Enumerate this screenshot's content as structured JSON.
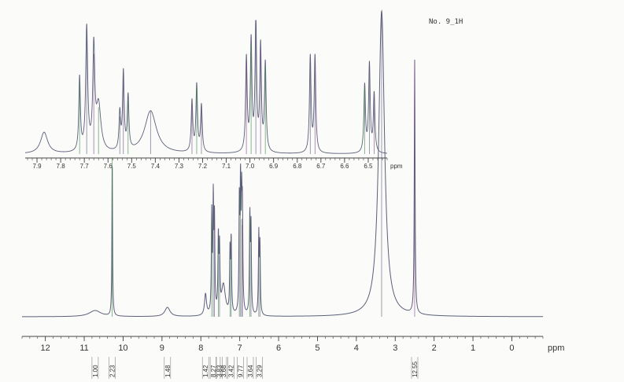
{
  "sample_label": "No. 9_1H",
  "chart_data": [
    {
      "type": "line",
      "role": "full-spectrum",
      "xlabel": "ppm",
      "xlim": [
        12.6,
        -0.8
      ],
      "x_reversed": true,
      "ticks": [
        12,
        11,
        10,
        9,
        8,
        7,
        6,
        5,
        4,
        3,
        2,
        1,
        0
      ],
      "tick_labels": [
        "12",
        "11",
        "10",
        "9",
        "8",
        "7",
        "6",
        "5",
        "4",
        "3",
        "2",
        "1",
        "0"
      ],
      "peaks": [
        {
          "ppm": 10.72,
          "height": 0.02,
          "width": 0.18
        },
        {
          "ppm": 10.28,
          "height": 0.52,
          "width": 0.01
        },
        {
          "ppm": 8.86,
          "height": 0.03,
          "width": 0.08
        },
        {
          "ppm": 7.88,
          "height": 0.07,
          "width": 0.03
        },
        {
          "ppm": 7.72,
          "height": 0.32,
          "width": 0.012
        },
        {
          "ppm": 7.68,
          "height": 0.36,
          "width": 0.012
        },
        {
          "ppm": 7.65,
          "height": 0.3,
          "width": 0.012
        },
        {
          "ppm": 7.55,
          "height": 0.24,
          "width": 0.012
        },
        {
          "ppm": 7.52,
          "height": 0.2,
          "width": 0.012
        },
        {
          "ppm": 7.42,
          "height": 0.1,
          "width": 0.06
        },
        {
          "ppm": 7.25,
          "height": 0.2,
          "width": 0.012
        },
        {
          "ppm": 7.22,
          "height": 0.24,
          "width": 0.012
        },
        {
          "ppm": 7.01,
          "height": 0.35,
          "width": 0.012
        },
        {
          "ppm": 6.98,
          "height": 0.4,
          "width": 0.012
        },
        {
          "ppm": 6.95,
          "height": 0.32,
          "width": 0.012
        },
        {
          "ppm": 6.93,
          "height": 0.3,
          "width": 0.012
        },
        {
          "ppm": 6.74,
          "height": 0.32,
          "width": 0.012
        },
        {
          "ppm": 6.71,
          "height": 0.28,
          "width": 0.012
        },
        {
          "ppm": 6.51,
          "height": 0.26,
          "width": 0.012
        },
        {
          "ppm": 6.48,
          "height": 0.22,
          "width": 0.012
        },
        {
          "ppm": 3.35,
          "height": 1.0,
          "width": 0.09
        },
        {
          "ppm": 2.5,
          "height": 0.83,
          "width": 0.012
        }
      ],
      "integrals": [
        {
          "ppm": 10.72,
          "value": "1.00"
        },
        {
          "ppm": 10.28,
          "value": "2.23"
        },
        {
          "ppm": 8.86,
          "value": "1.48"
        },
        {
          "ppm": 7.88,
          "value": "1.42"
        },
        {
          "ppm": 7.68,
          "value": "8.27"
        },
        {
          "ppm": 7.53,
          "value": "3.83"
        },
        {
          "ppm": 7.42,
          "value": "3.68"
        },
        {
          "ppm": 7.23,
          "value": "3.42"
        },
        {
          "ppm": 6.98,
          "value": "9.77"
        },
        {
          "ppm": 6.73,
          "value": "3.64"
        },
        {
          "ppm": 6.5,
          "value": "3.29"
        },
        {
          "ppm": 2.5,
          "value": "12.55"
        }
      ]
    },
    {
      "type": "line",
      "role": "aromatic-expansion",
      "xlabel": "ppm",
      "xlim": [
        7.95,
        6.42
      ],
      "x_reversed": true,
      "ticks": [
        7.9,
        7.8,
        7.7,
        7.6,
        7.5,
        7.4,
        7.3,
        7.2,
        7.1,
        7.0,
        6.9,
        6.8,
        6.7,
        6.6,
        6.5
      ],
      "tick_labels": [
        "7.9",
        "7.8",
        "7.7",
        "7.6",
        "7.5",
        "7.4",
        "7.3",
        "7.2",
        "7.1",
        "7.0",
        "6.9",
        "6.8",
        "6.7",
        "6.6",
        "6.5"
      ],
      "peaks": [
        {
          "ppm": 7.87,
          "height": 0.16,
          "width": 0.018
        },
        {
          "ppm": 7.72,
          "height": 0.55,
          "width": 0.004
        },
        {
          "ppm": 7.69,
          "height": 0.92,
          "width": 0.005
        },
        {
          "ppm": 7.66,
          "height": 0.75,
          "width": 0.005
        },
        {
          "ppm": 7.64,
          "height": 0.35,
          "width": 0.012
        },
        {
          "ppm": 7.55,
          "height": 0.28,
          "width": 0.004
        },
        {
          "ppm": 7.535,
          "height": 0.58,
          "width": 0.004
        },
        {
          "ppm": 7.515,
          "height": 0.4,
          "width": 0.004
        },
        {
          "ppm": 7.42,
          "height": 0.32,
          "width": 0.03
        },
        {
          "ppm": 7.245,
          "height": 0.38,
          "width": 0.004
        },
        {
          "ppm": 7.225,
          "height": 0.5,
          "width": 0.004
        },
        {
          "ppm": 7.205,
          "height": 0.35,
          "width": 0.004
        },
        {
          "ppm": 7.015,
          "height": 0.7,
          "width": 0.004
        },
        {
          "ppm": 6.995,
          "height": 0.82,
          "width": 0.004
        },
        {
          "ppm": 6.975,
          "height": 0.98,
          "width": 0.004
        },
        {
          "ppm": 6.955,
          "height": 0.78,
          "width": 0.004
        },
        {
          "ppm": 6.935,
          "height": 0.66,
          "width": 0.004
        },
        {
          "ppm": 6.745,
          "height": 0.72,
          "width": 0.004
        },
        {
          "ppm": 6.725,
          "height": 0.72,
          "width": 0.004
        },
        {
          "ppm": 6.515,
          "height": 0.5,
          "width": 0.004
        },
        {
          "ppm": 6.495,
          "height": 0.66,
          "width": 0.004
        },
        {
          "ppm": 6.475,
          "height": 0.44,
          "width": 0.004
        }
      ]
    }
  ],
  "colors": {
    "trace": "#5b5f7a",
    "trace_alt": "#7a4c8a",
    "axis": "#444444",
    "green": "#3f8a4a"
  }
}
